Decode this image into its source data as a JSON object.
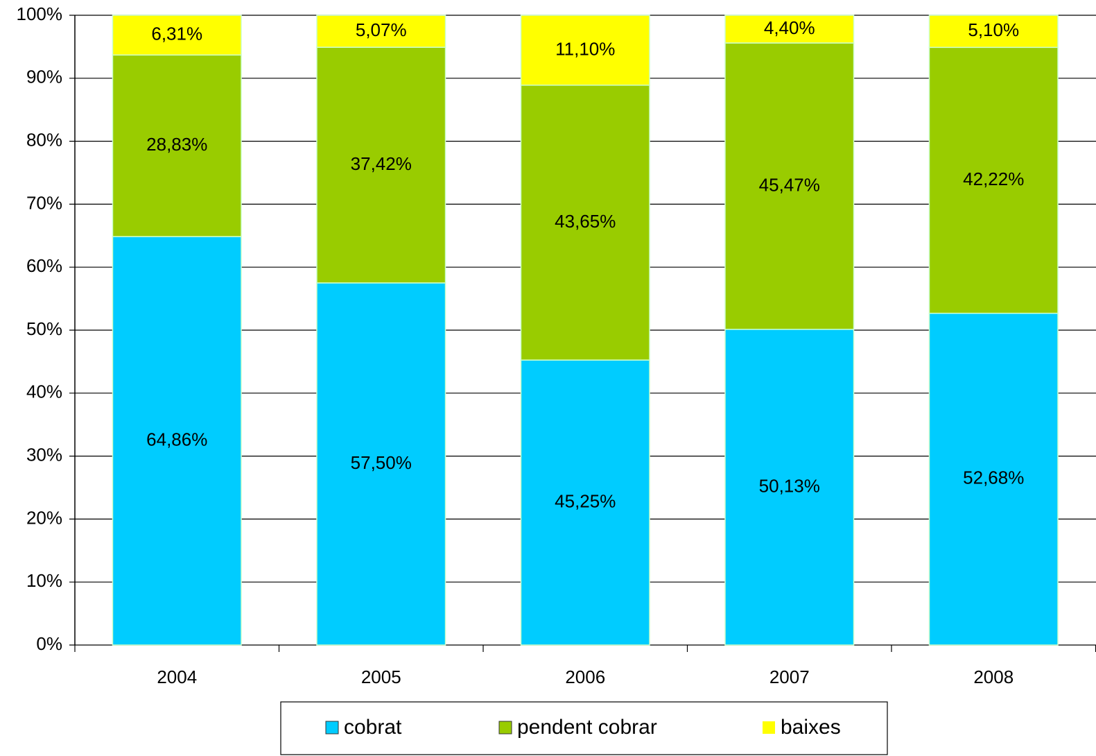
{
  "chart_data": {
    "type": "stacked_bar",
    "categories": [
      "2004",
      "2005",
      "2006",
      "2007",
      "2008"
    ],
    "series": [
      {
        "name": "cobrat",
        "color": "#00ccff",
        "values": [
          64.86,
          57.5,
          45.25,
          50.13,
          52.68
        ],
        "value_labels": [
          "64,86%",
          "57,50%",
          "45,25%",
          "50,13%",
          "52,68%"
        ]
      },
      {
        "name": "pendent cobrar",
        "color": "#99cc00",
        "values": [
          28.83,
          37.42,
          43.65,
          45.47,
          42.22
        ],
        "value_labels": [
          "28,83%",
          "37,42%",
          "43,65%",
          "45,47%",
          "42,22%"
        ]
      },
      {
        "name": "baixes",
        "color": "#ffff00",
        "values": [
          6.31,
          5.07,
          11.1,
          4.4,
          5.1
        ],
        "value_labels": [
          "6,31%",
          "5,07%",
          "11,10%",
          "4,40%",
          "5,10%"
        ]
      }
    ],
    "ylim": [
      0,
      100
    ],
    "yticks": [
      {
        "value": 0,
        "label": "0%"
      },
      {
        "value": 10,
        "label": "10%"
      },
      {
        "value": 20,
        "label": "20%"
      },
      {
        "value": 30,
        "label": "30%"
      },
      {
        "value": 40,
        "label": "40%"
      },
      {
        "value": 50,
        "label": "50%"
      },
      {
        "value": 60,
        "label": "60%"
      },
      {
        "value": 70,
        "label": "70%"
      },
      {
        "value": 80,
        "label": "80%"
      },
      {
        "value": 90,
        "label": "90%"
      },
      {
        "value": 100,
        "label": "100%"
      }
    ],
    "grid": true,
    "legend": "bottom"
  }
}
